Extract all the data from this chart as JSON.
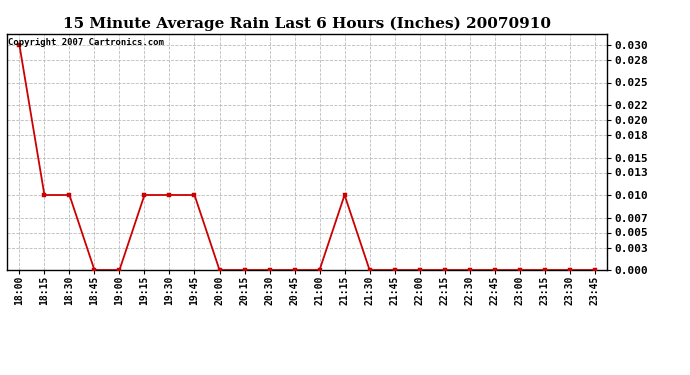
{
  "title": "15 Minute Average Rain Last 6 Hours (Inches) 20070910",
  "copyright_text": "Copyright 2007 Cartronics.com",
  "x_labels": [
    "18:00",
    "18:15",
    "18:30",
    "18:45",
    "19:00",
    "19:15",
    "19:30",
    "19:45",
    "20:00",
    "20:15",
    "20:30",
    "20:45",
    "21:00",
    "21:15",
    "21:30",
    "21:45",
    "22:00",
    "22:15",
    "22:30",
    "22:45",
    "23:00",
    "23:15",
    "23:30",
    "23:45"
  ],
  "y_values": [
    0.03,
    0.01,
    0.01,
    0.0,
    0.0,
    0.01,
    0.01,
    0.01,
    0.0,
    0.0,
    0.0,
    0.0,
    0.0,
    0.01,
    0.0,
    0.0,
    0.0,
    0.0,
    0.0,
    0.0,
    0.0,
    0.0,
    0.0,
    0.0
  ],
  "line_color": "#cc0000",
  "marker_color": "#cc0000",
  "marker_size": 2.5,
  "line_width": 1.3,
  "background_color": "#ffffff",
  "grid_color": "#bbbbbb",
  "ylim": [
    0.0,
    0.0315
  ],
  "yticks": [
    0.0,
    0.003,
    0.005,
    0.007,
    0.01,
    0.013,
    0.015,
    0.018,
    0.02,
    0.022,
    0.025,
    0.028,
    0.03
  ],
  "title_fontsize": 11,
  "copyright_fontsize": 6.5,
  "tick_fontsize": 7,
  "ytick_fontsize": 8
}
